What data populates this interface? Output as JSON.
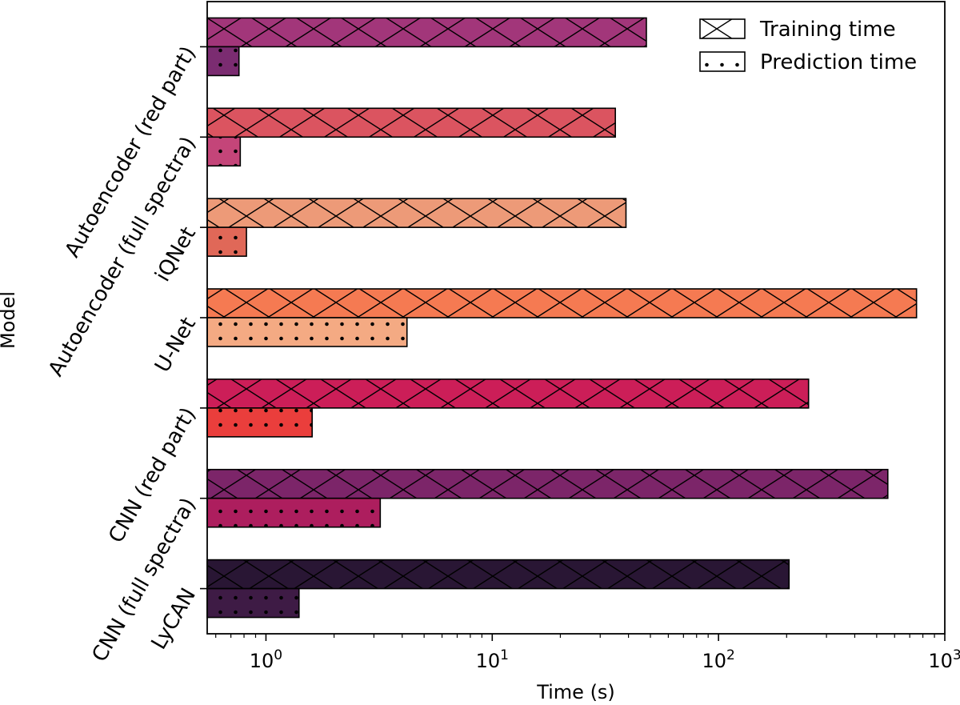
{
  "chart_data": {
    "type": "bar",
    "orientation": "horizontal",
    "xscale": "log",
    "xlim": [
      0.55,
      1000
    ],
    "xlabel": "Time (s)",
    "ylabel": "Model",
    "xticks": [
      {
        "value": 1,
        "base": "10",
        "exp": "0"
      },
      {
        "value": 10,
        "base": "10",
        "exp": "1"
      },
      {
        "value": 100,
        "base": "10",
        "exp": "2"
      },
      {
        "value": 1000,
        "base": "10",
        "exp": "3"
      }
    ],
    "categories": [
      "Autoencoder (red part)",
      "Autoencoder (full spectra)",
      "iQNet",
      "U-Net",
      "CNN (red part)",
      "CNN (full spectra)",
      "LyCAN"
    ],
    "series": [
      {
        "name": "Training time",
        "hatch": "x",
        "values": [
          48,
          35,
          39,
          750,
          250,
          560,
          205
        ],
        "colors": [
          "#a2367a",
          "#db5460",
          "#ed9a78",
          "#f57a52",
          "#cc1e58",
          "#7c2569",
          "#291634"
        ]
      },
      {
        "name": "Prediction time",
        "hatch": "dots",
        "values": [
          0.76,
          0.77,
          0.82,
          4.2,
          1.6,
          3.2,
          1.4
        ],
        "colors": [
          "#7b2c71",
          "#c44579",
          "#e06858",
          "#f4aa83",
          "#ea3e3c",
          "#ad1e5e",
          "#3e1b45"
        ]
      }
    ],
    "legend": {
      "position": "top-right",
      "entries": [
        "Training time",
        "Prediction time"
      ]
    }
  }
}
